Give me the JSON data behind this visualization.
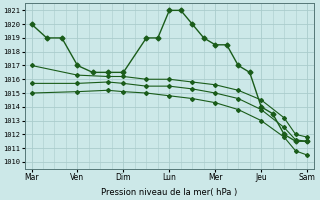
{
  "xlabel": "Pression niveau de la mer( hPa )",
  "bg_color": "#cce8e8",
  "grid_color": "#aacccc",
  "line_color": "#1a5c1a",
  "ylim": [
    1009.5,
    1021.5
  ],
  "yticks": [
    1010,
    1011,
    1012,
    1013,
    1014,
    1015,
    1016,
    1017,
    1018,
    1019,
    1020,
    1021
  ],
  "day_labels": [
    "Mar",
    "Ven",
    "Dim",
    "Lun",
    "Mer",
    "Jeu",
    "Sam"
  ],
  "day_positions": [
    0,
    1,
    2,
    3,
    4,
    5,
    6
  ],
  "xlim": [
    -0.15,
    6.15
  ],
  "series1_x": [
    0.0,
    0.33,
    0.66,
    1.0,
    1.33,
    1.66,
    2.0,
    2.5,
    2.75,
    3.0,
    3.25,
    3.5,
    3.75,
    4.0,
    4.25,
    4.5,
    4.75,
    5.0,
    5.25,
    5.5,
    5.75,
    6.0
  ],
  "series1_y": [
    1020,
    1019,
    1019,
    1017,
    1016.5,
    1016.5,
    1016.5,
    1019,
    1019,
    1021,
    1021,
    1020,
    1019,
    1018.5,
    1018.5,
    1017,
    1016.5,
    1014,
    1013.5,
    1012,
    1011.5,
    1011.5
  ],
  "series2_x": [
    0.0,
    1.0,
    1.66,
    2.0,
    2.5,
    3.0,
    3.5,
    4.0,
    4.5,
    5.0,
    5.5,
    5.75,
    6.0
  ],
  "series2_y": [
    1017,
    1016.3,
    1016.2,
    1016.2,
    1016,
    1016,
    1015.8,
    1015.6,
    1015.2,
    1014.5,
    1013.2,
    1012,
    1011.8
  ],
  "series3_x": [
    0.0,
    1.0,
    1.66,
    2.0,
    2.5,
    3.0,
    3.5,
    4.0,
    4.5,
    5.0,
    5.5,
    5.75,
    6.0
  ],
  "series3_y": [
    1015.7,
    1015.7,
    1015.8,
    1015.7,
    1015.5,
    1015.5,
    1015.3,
    1015.0,
    1014.6,
    1013.8,
    1012.5,
    1011.6,
    1011.5
  ],
  "series4_x": [
    0.0,
    1.0,
    1.66,
    2.0,
    2.5,
    3.0,
    3.5,
    4.0,
    4.5,
    5.0,
    5.5,
    5.75,
    6.0
  ],
  "series4_y": [
    1015.0,
    1015.1,
    1015.2,
    1015.1,
    1015.0,
    1014.8,
    1014.6,
    1014.3,
    1013.8,
    1013.0,
    1011.8,
    1010.8,
    1010.5
  ]
}
